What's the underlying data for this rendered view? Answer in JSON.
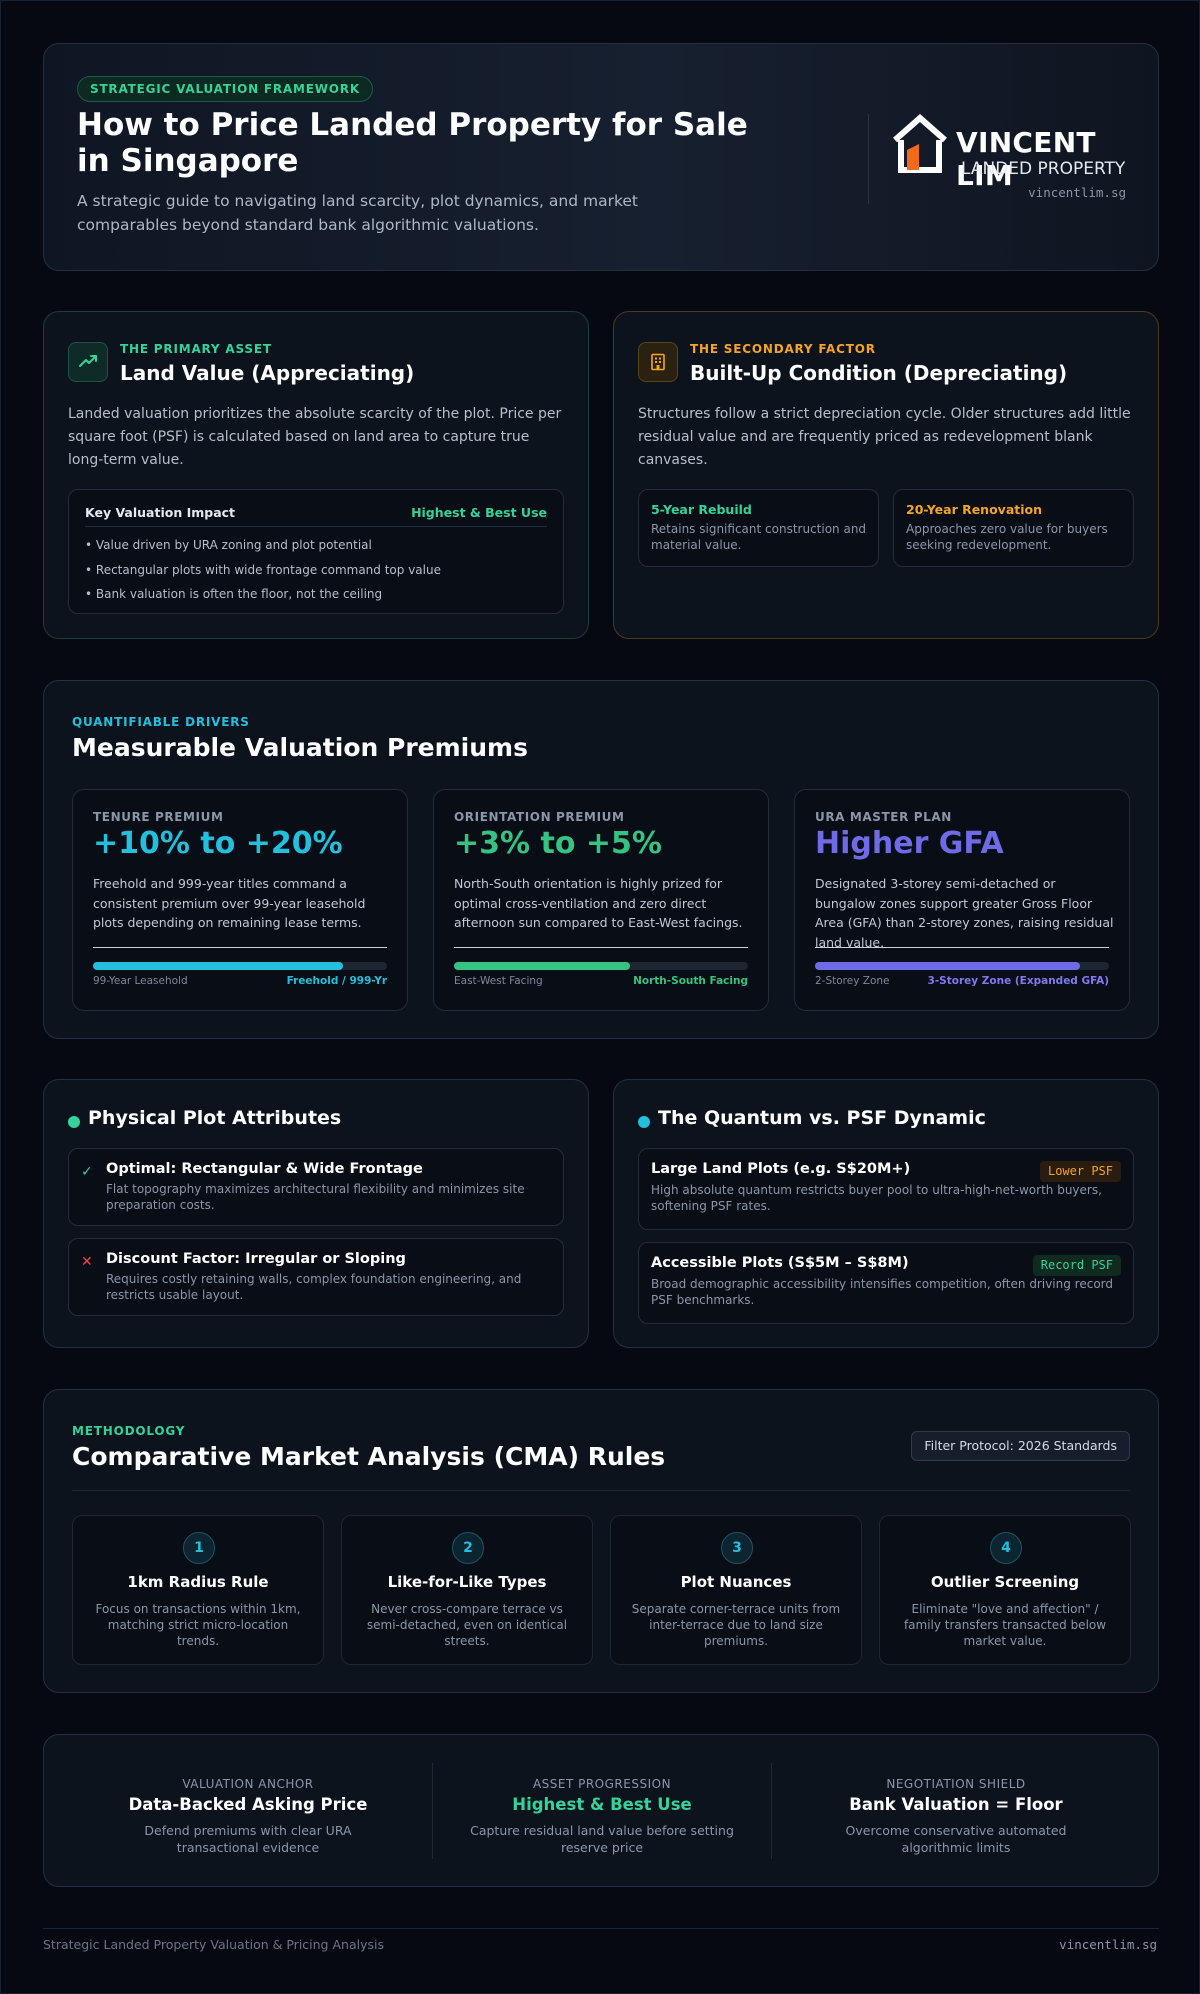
{
  "header": {
    "badge": "STRATEGIC VALUATION FRAMEWORK",
    "title": "How to Price Landed Property for Sale in Singapore",
    "subtitle": "A strategic guide to navigating land scarcity, plot dynamics, and market comparables beyond standard bank algorithmic valuations.",
    "logo": {
      "name": "VINCENT LIM",
      "tagline": "LANDED PROPERTY",
      "url": "vincentlim.sg",
      "icon": "house-logo-icon"
    }
  },
  "land": {
    "eyebrow": "THE PRIMARY ASSET",
    "title": "Land Value (Appreciating)",
    "body": "Landed valuation prioritizes the absolute scarcity of the plot. Price per square foot (PSF) is calculated based on land area to capture true long-term value.",
    "icon": "trending-up-icon",
    "impact": {
      "heading": "Key Valuation Impact",
      "highlight": "Highest & Best Use",
      "points": [
        "• Value driven by URA zoning and plot potential",
        "• Rectangular plots with wide frontage command top value",
        "• Bank valuation is often the floor, not the ceiling"
      ]
    }
  },
  "built": {
    "eyebrow": "THE SECONDARY FACTOR",
    "title": "Built-Up Condition (Depreciating)",
    "body": "Structures follow a strict depreciation cycle. Older structures add little residual value and are frequently priced as redevelopment blank canvases.",
    "icon": "building-icon",
    "items": [
      {
        "title": "5-Year Rebuild",
        "desc": "Retains significant construction and material value."
      },
      {
        "title": "20-Year Renovation",
        "desc": "Approaches zero value for buyers seeking redevelopment."
      }
    ]
  },
  "premiums": {
    "eyebrow": "QUANTIFIABLE DRIVERS",
    "title": "Measurable Valuation Premiums",
    "cards": [
      {
        "label": "TENURE PREMIUM",
        "value": "+10% to +20%",
        "desc": "Freehold and 999-year titles command a consistent premium over 99-year leasehold plots depending on remaining lease terms.",
        "from": "99-Year Leasehold",
        "to": "Freehold / 999-Yr",
        "level": 0.85,
        "color": "#22c0dd"
      },
      {
        "label": "ORIENTATION PREMIUM",
        "value": "+3% to +5%",
        "desc": "North-South orientation is highly prized for optimal cross-ventilation and zero direct afternoon sun compared to East-West facings.",
        "from": "East-West Facing",
        "to": "North-South Facing",
        "level": 0.6,
        "color": "#34c383"
      },
      {
        "label": "URA MASTER PLAN",
        "value": "Higher GFA",
        "desc": "Designated 3-storey semi-detached or bungalow zones support greater Gross Floor Area (GFA) than 2-storey zones, raising residual land value.",
        "from": "2-Storey Zone",
        "to": "3-Storey Zone (Expanded GFA)",
        "level": 0.9,
        "color": "#6f6ae6"
      }
    ]
  },
  "attributes": {
    "title": "Physical Plot Attributes",
    "items": [
      {
        "icon": "check-icon",
        "glyph": "✓",
        "title": "Optimal: Rectangular & Wide Frontage",
        "desc": "Flat topography maximizes architectural flexibility and minimizes site preparation costs."
      },
      {
        "icon": "cross-icon",
        "glyph": "✕",
        "title": "Discount Factor: Irregular or Sloping",
        "desc": "Requires costly retaining walls, complex foundation engineering, and restricts usable layout."
      }
    ]
  },
  "quantum": {
    "title": "The Quantum vs. PSF Dynamic",
    "items": [
      {
        "title": "Large Land Plots (e.g. S$20M+)",
        "tag": "Lower PSF",
        "desc": "High absolute quantum restricts buyer pool to ultra-high-net-worth buyers, softening PSF rates."
      },
      {
        "title": "Accessible Plots (S$5M – S$8M)",
        "tag": "Record PSF",
        "desc": "Broad demographic accessibility intensifies competition, often driving record PSF benchmarks."
      }
    ]
  },
  "cma": {
    "eyebrow": "METHODOLOGY",
    "title": "Comparative Market Analysis (CMA) Rules",
    "filter": "Filter Protocol: 2026 Standards",
    "steps": [
      {
        "num": "1",
        "title": "1km Radius Rule",
        "desc": "Focus on transactions within 1km, matching strict micro-location trends."
      },
      {
        "num": "2",
        "title": "Like-for-Like Types",
        "desc": "Never cross-compare terrace vs semi-detached, even on identical streets."
      },
      {
        "num": "3",
        "title": "Plot Nuances",
        "desc": "Separate corner-terrace units from inter-terrace due to land size premiums."
      },
      {
        "num": "4",
        "title": "Outlier Screening",
        "desc": "Eliminate \"love and affection\" / family transfers transacted below market value."
      }
    ]
  },
  "summary": [
    {
      "label": "VALUATION ANCHOR",
      "title": "Data-Backed Asking Price",
      "desc": "Defend premiums with clear URA transactional evidence"
    },
    {
      "label": "ASSET PROGRESSION",
      "title": "Highest & Best Use",
      "desc": "Capture residual land value before setting reserve price"
    },
    {
      "label": "NEGOTIATION SHIELD",
      "title": "Bank Valuation = Floor",
      "desc": "Overcome conservative automated algorithmic limits"
    }
  ],
  "footer": {
    "left": "Strategic Landed Property Valuation & Pricing Analysis",
    "right": "vincentlim.sg"
  },
  "colors": {
    "green": "#34d399",
    "amber": "#f5a524",
    "cyan": "#22c0dd",
    "indigo": "#6f6ae6",
    "red": "#e5484d"
  }
}
